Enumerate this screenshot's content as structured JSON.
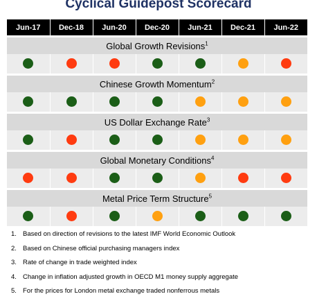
{
  "title": "Cyclical Guidepost Scorecard",
  "chart_data": {
    "type": "table",
    "columns": [
      "Jun-17",
      "Dec-18",
      "Jun-20",
      "Dec-20",
      "Jun-21",
      "Dec-21",
      "Jun-22"
    ],
    "status_colors": {
      "green": "#1b5e17",
      "red": "#ff3b10",
      "orange": "#ffa010"
    },
    "rows": [
      {
        "label": "Global Growth Revisions",
        "note": "1",
        "statuses": [
          "green",
          "red",
          "red",
          "green",
          "green",
          "orange",
          "red"
        ]
      },
      {
        "label": "Chinese Growth Momentum",
        "note": "2",
        "statuses": [
          "green",
          "green",
          "green",
          "green",
          "orange",
          "orange",
          "orange"
        ]
      },
      {
        "label": "US Dollar Exchange Rate",
        "note": "3",
        "statuses": [
          "green",
          "red",
          "green",
          "green",
          "orange",
          "orange",
          "orange"
        ]
      },
      {
        "label": "Global Monetary Conditions",
        "note": "4",
        "statuses": [
          "red",
          "red",
          "green",
          "green",
          "orange",
          "red",
          "red"
        ]
      },
      {
        "label": "Metal Price Term Structure",
        "note": "5",
        "statuses": [
          "green",
          "red",
          "green",
          "orange",
          "green",
          "green",
          "green"
        ]
      }
    ]
  },
  "footnotes": [
    {
      "num": "1.",
      "text": "Based on direction of revisions to the latest IMF World Economic Outlook"
    },
    {
      "num": "2.",
      "text": "Based on Chinese official purchasing managers index"
    },
    {
      "num": "3.",
      "text": "Rate of change in trade weighted index"
    },
    {
      "num": "4.",
      "text": "Change in inflation adjusted growth in OECD M1 money supply aggregate"
    },
    {
      "num": "5.",
      "text": "For the prices for London metal exchange traded nonferrous metals"
    }
  ]
}
